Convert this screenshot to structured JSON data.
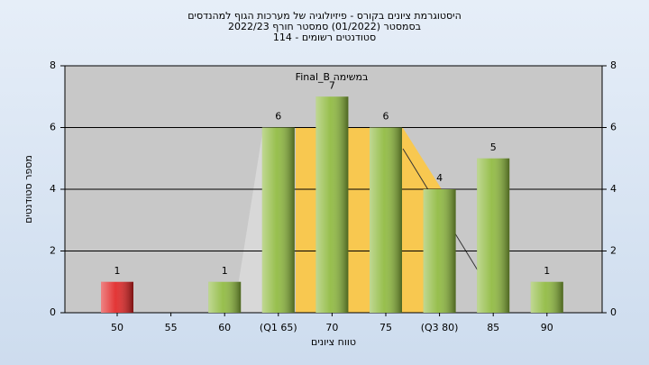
{
  "chart_data": {
    "type": "bar",
    "title": [
      "היסטוגרמת ציונים בקורס - פיזיולוגיה של מערכות הגוף למהנדסים",
      "בסמסטר  (01/2022)  סמסטר חורף  2022/23",
      "סטודנטים רשומים - 114"
    ],
    "annotation": "במשימה Final_B",
    "ylabel": "מספר סטודנטים",
    "xlabel": "טווח ציונים",
    "categories": [
      "50",
      "55",
      "60",
      "(Q1 65)",
      "70",
      "75",
      "(Q3 80)",
      "85",
      "90"
    ],
    "values": [
      1,
      0,
      1,
      6,
      7,
      6,
      4,
      5,
      1
    ],
    "colors": [
      "#e02020",
      "#8cb83a",
      "#8cb83a",
      "#8cb83a",
      "#8cb83a",
      "#8cb83a",
      "#8cb83a",
      "#8cb83a",
      "#8cb83a"
    ],
    "ylim": [
      0,
      8
    ],
    "yticks": [
      0,
      2,
      4,
      6,
      8
    ],
    "y2lim": [
      0,
      8
    ],
    "y2ticks": [
      0,
      2,
      4,
      6,
      8
    ]
  }
}
